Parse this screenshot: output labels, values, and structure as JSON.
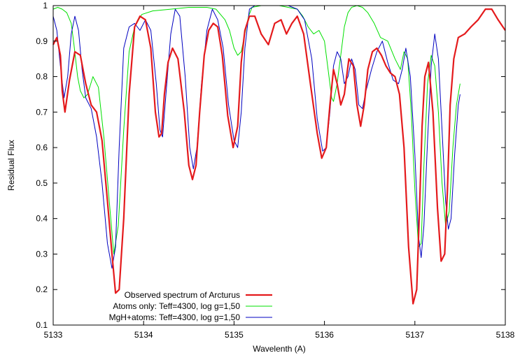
{
  "chart_data": {
    "type": "line",
    "title": "",
    "xlabel": "Wavelenth (A)",
    "ylabel": "Residual Flux",
    "xlim": [
      5133,
      5138
    ],
    "ylim": [
      0.1,
      1.0
    ],
    "x_ticks": [
      5133,
      5134,
      5135,
      5136,
      5137,
      5138
    ],
    "x_tick_labels": [
      "5133",
      "5134",
      "5135",
      "5136",
      "5137",
      "5138"
    ],
    "y_ticks": [
      0.1,
      0.2,
      0.3,
      0.4,
      0.5,
      0.6,
      0.7,
      0.8,
      0.9,
      1.0
    ],
    "y_tick_labels": [
      "0.1",
      "0.2",
      "0.3",
      "0.4",
      "0.5",
      "0.6",
      "0.7",
      "0.8",
      "0.9",
      "1"
    ],
    "grid": false,
    "legend_position": "bottom-left",
    "series": [
      {
        "name": "Observed spectrum of Arcturus",
        "color": "#e41a1c",
        "x": [
          5133.0,
          5133.04,
          5133.08,
          5133.1,
          5133.13,
          5133.18,
          5133.24,
          5133.3,
          5133.36,
          5133.42,
          5133.48,
          5133.54,
          5133.6,
          5133.65,
          5133.69,
          5133.73,
          5133.78,
          5133.84,
          5133.9,
          5133.96,
          5134.02,
          5134.08,
          5134.13,
          5134.17,
          5134.2,
          5134.23,
          5134.27,
          5134.32,
          5134.38,
          5134.45,
          5134.5,
          5134.54,
          5134.58,
          5134.62,
          5134.67,
          5134.72,
          5134.77,
          5134.82,
          5134.87,
          5134.93,
          5134.99,
          5135.04,
          5135.08,
          5135.12,
          5135.17,
          5135.23,
          5135.3,
          5135.38,
          5135.45,
          5135.52,
          5135.58,
          5135.64,
          5135.7,
          5135.77,
          5135.85,
          5135.92,
          5135.97,
          5136.02,
          5136.06,
          5136.1,
          5136.14,
          5136.18,
          5136.22,
          5136.27,
          5136.32,
          5136.36,
          5136.4,
          5136.44,
          5136.48,
          5136.53,
          5136.58,
          5136.63,
          5136.68,
          5136.73,
          5136.78,
          5136.83,
          5136.88,
          5136.93,
          5136.98,
          5137.02,
          5137.05,
          5137.08,
          5137.11,
          5137.15,
          5137.2,
          5137.25,
          5137.29,
          5137.33,
          5137.36,
          5137.39,
          5137.43,
          5137.48,
          5137.55,
          5137.62,
          5137.7,
          5137.78,
          5137.85,
          5137.92,
          5138.0
        ],
        "y": [
          0.89,
          0.91,
          0.86,
          0.76,
          0.7,
          0.79,
          0.87,
          0.86,
          0.78,
          0.72,
          0.7,
          0.62,
          0.45,
          0.3,
          0.19,
          0.2,
          0.4,
          0.75,
          0.94,
          0.97,
          0.96,
          0.88,
          0.7,
          0.63,
          0.64,
          0.75,
          0.84,
          0.88,
          0.85,
          0.7,
          0.55,
          0.51,
          0.55,
          0.7,
          0.86,
          0.93,
          0.95,
          0.94,
          0.86,
          0.69,
          0.6,
          0.66,
          0.84,
          0.93,
          0.97,
          0.97,
          0.92,
          0.89,
          0.95,
          0.96,
          0.92,
          0.95,
          0.97,
          0.92,
          0.77,
          0.64,
          0.57,
          0.6,
          0.72,
          0.82,
          0.78,
          0.72,
          0.75,
          0.85,
          0.83,
          0.72,
          0.66,
          0.72,
          0.82,
          0.87,
          0.88,
          0.86,
          0.83,
          0.81,
          0.8,
          0.75,
          0.6,
          0.32,
          0.16,
          0.2,
          0.42,
          0.66,
          0.8,
          0.84,
          0.7,
          0.43,
          0.28,
          0.3,
          0.48,
          0.72,
          0.85,
          0.91,
          0.92,
          0.94,
          0.96,
          0.99,
          0.99,
          0.96,
          0.93
        ]
      },
      {
        "name": "Atoms only: Teff=4300, log g=1,50",
        "color": "#00e000",
        "x": [
          5133.0,
          5133.05,
          5133.1,
          5133.15,
          5133.2,
          5133.23,
          5133.27,
          5133.3,
          5133.34,
          5133.38,
          5133.44,
          5133.5,
          5133.56,
          5133.62,
          5133.67,
          5133.72,
          5133.78,
          5133.84,
          5133.9,
          5133.98,
          5134.1,
          5134.3,
          5134.5,
          5134.7,
          5134.8,
          5134.9,
          5134.95,
          5135.0,
          5135.04,
          5135.08,
          5135.12,
          5135.16,
          5135.2,
          5135.3,
          5135.5,
          5135.7,
          5135.76,
          5135.82,
          5135.88,
          5135.94,
          5136.0,
          5136.04,
          5136.08,
          5136.1,
          5136.14,
          5136.18,
          5136.22,
          5136.26,
          5136.3,
          5136.36,
          5136.42,
          5136.48,
          5136.55,
          5136.62,
          5136.7,
          5136.78,
          5136.84,
          5136.88,
          5136.92,
          5136.96,
          5137.0,
          5137.04,
          5137.07,
          5137.1,
          5137.14,
          5137.18,
          5137.22,
          5137.26,
          5137.3,
          5137.34,
          5137.38,
          5137.42,
          5137.46,
          5137.5
        ],
        "y": [
          0.99,
          0.995,
          0.99,
          0.98,
          0.95,
          0.89,
          0.8,
          0.76,
          0.74,
          0.75,
          0.8,
          0.77,
          0.63,
          0.45,
          0.3,
          0.38,
          0.65,
          0.87,
          0.94,
          0.975,
          0.985,
          0.99,
          0.995,
          0.995,
          0.99,
          0.96,
          0.93,
          0.88,
          0.86,
          0.87,
          0.92,
          0.97,
          0.995,
          1.0,
          1.0,
          0.99,
          0.97,
          0.94,
          0.92,
          0.93,
          0.9,
          0.82,
          0.74,
          0.73,
          0.78,
          0.86,
          0.94,
          0.98,
          0.995,
          1.0,
          0.995,
          0.98,
          0.95,
          0.91,
          0.9,
          0.85,
          0.82,
          0.87,
          0.85,
          0.7,
          0.48,
          0.32,
          0.33,
          0.55,
          0.78,
          0.86,
          0.83,
          0.7,
          0.5,
          0.38,
          0.42,
          0.6,
          0.72,
          0.78
        ]
      },
      {
        "name": "MgH+atoms: Teff=4300, log g=1,50",
        "color": "#0000c0",
        "x": [
          5133.0,
          5133.04,
          5133.08,
          5133.12,
          5133.16,
          5133.2,
          5133.24,
          5133.28,
          5133.32,
          5133.36,
          5133.42,
          5133.48,
          5133.54,
          5133.6,
          5133.65,
          5133.69,
          5133.73,
          5133.78,
          5133.84,
          5133.9,
          5133.96,
          5134.02,
          5134.08,
          5134.14,
          5134.18,
          5134.21,
          5134.25,
          5134.3,
          5134.35,
          5134.4,
          5134.46,
          5134.51,
          5134.55,
          5134.59,
          5134.64,
          5134.7,
          5134.76,
          5134.82,
          5134.88,
          5134.94,
          5135.0,
          5135.04,
          5135.08,
          5135.12,
          5135.17,
          5135.23,
          5135.3,
          5135.45,
          5135.6,
          5135.7,
          5135.78,
          5135.86,
          5135.92,
          5135.98,
          5136.02,
          5136.06,
          5136.1,
          5136.14,
          5136.18,
          5136.22,
          5136.26,
          5136.3,
          5136.34,
          5136.38,
          5136.42,
          5136.46,
          5136.52,
          5136.58,
          5136.64,
          5136.7,
          5136.76,
          5136.82,
          5136.86,
          5136.9,
          5136.95,
          5137.0,
          5137.04,
          5137.07,
          5137.1,
          5137.14,
          5137.18,
          5137.22,
          5137.26,
          5137.3,
          5137.34,
          5137.37,
          5137.4,
          5137.44,
          5137.48,
          5137.5
        ],
        "y": [
          0.97,
          0.93,
          0.83,
          0.74,
          0.8,
          0.92,
          0.97,
          0.93,
          0.82,
          0.74,
          0.71,
          0.63,
          0.5,
          0.33,
          0.26,
          0.32,
          0.6,
          0.88,
          0.94,
          0.95,
          0.93,
          0.96,
          0.93,
          0.78,
          0.65,
          0.63,
          0.76,
          0.92,
          0.99,
          0.97,
          0.8,
          0.6,
          0.54,
          0.6,
          0.78,
          0.93,
          0.99,
          0.96,
          0.88,
          0.72,
          0.62,
          0.6,
          0.7,
          0.88,
          0.99,
          1.0,
          1.0,
          1.0,
          1.0,
          0.99,
          0.96,
          0.85,
          0.68,
          0.59,
          0.6,
          0.7,
          0.83,
          0.87,
          0.85,
          0.78,
          0.8,
          0.85,
          0.82,
          0.72,
          0.71,
          0.76,
          0.82,
          0.87,
          0.9,
          0.84,
          0.79,
          0.78,
          0.82,
          0.88,
          0.8,
          0.58,
          0.35,
          0.29,
          0.38,
          0.62,
          0.83,
          0.92,
          0.85,
          0.65,
          0.45,
          0.37,
          0.4,
          0.58,
          0.72,
          0.75
        ]
      }
    ]
  }
}
